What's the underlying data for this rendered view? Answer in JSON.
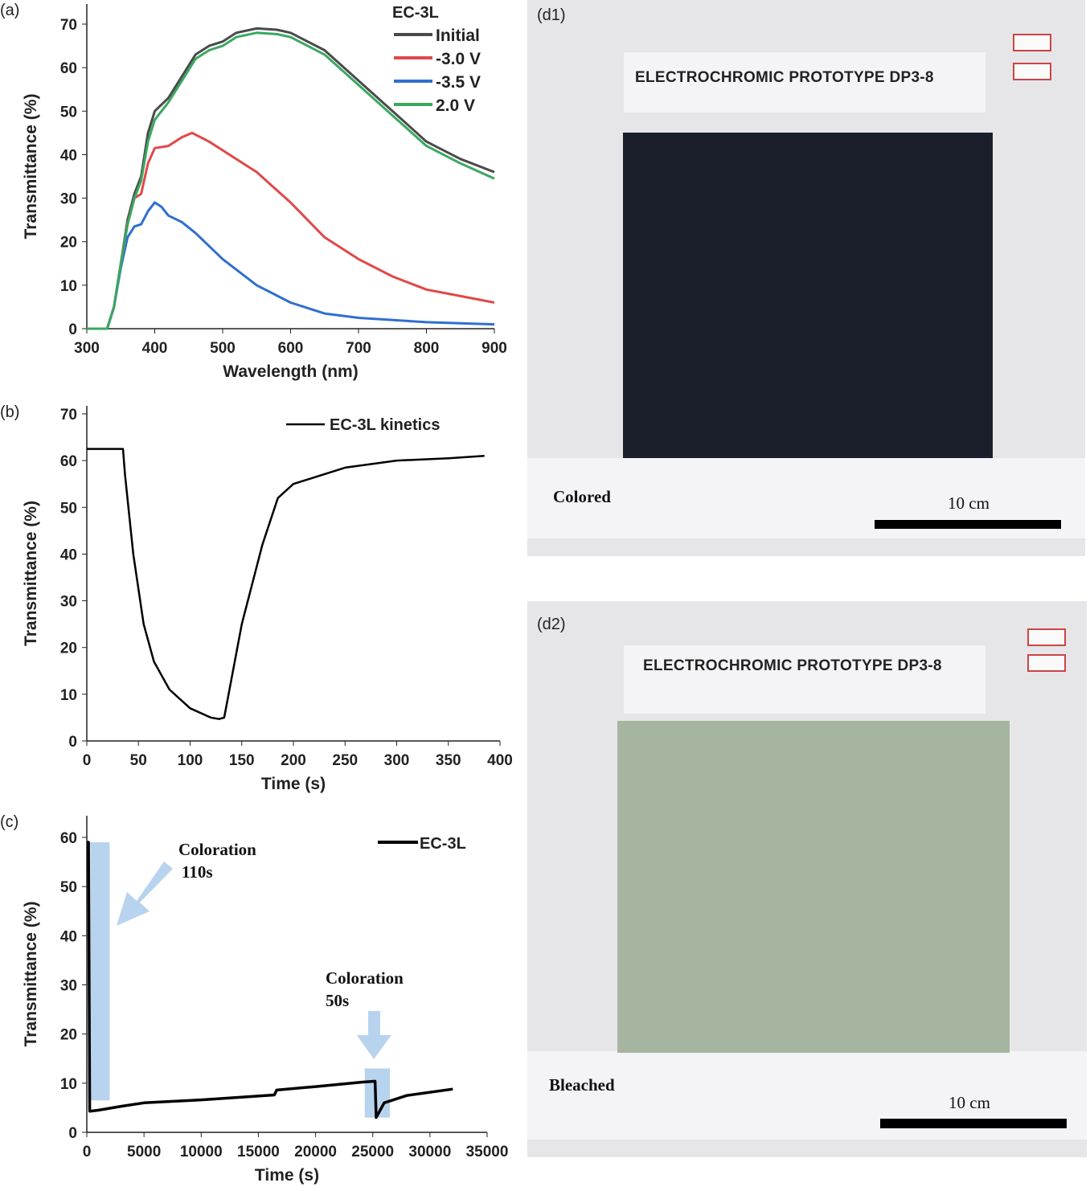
{
  "chart_data": [
    {
      "panel": "(a)",
      "type": "line",
      "xlabel": "Wavelength (nm)",
      "ylabel": "Transmittance (%)",
      "xlim": [
        300,
        900
      ],
      "ylim": [
        0,
        75
      ],
      "xticks": [
        300,
        400,
        500,
        600,
        700,
        800,
        900
      ],
      "yticks": [
        0,
        10,
        20,
        30,
        40,
        50,
        60,
        70
      ],
      "legend_title": "EC-3L",
      "legend_position": "top-right",
      "grid": false,
      "series": [
        {
          "name": "Initial",
          "color": "#4a4a4a",
          "x": [
            300,
            330,
            340,
            350,
            360,
            370,
            380,
            390,
            400,
            420,
            440,
            460,
            480,
            500,
            520,
            550,
            580,
            600,
            650,
            700,
            750,
            800,
            850,
            900
          ],
          "y": [
            0,
            0,
            5,
            15,
            25,
            31,
            35,
            45,
            50,
            53,
            58,
            63,
            65,
            66,
            68,
            69,
            68.7,
            68,
            64,
            57,
            50,
            43,
            39,
            36
          ]
        },
        {
          "name": "-3.0 V",
          "color": "#e04848",
          "x": [
            300,
            330,
            340,
            350,
            360,
            370,
            380,
            390,
            400,
            420,
            440,
            455,
            480,
            500,
            550,
            600,
            650,
            700,
            750,
            800,
            850,
            900
          ],
          "y": [
            0,
            0,
            5,
            15,
            24,
            30,
            31,
            38,
            41.5,
            42,
            44,
            45,
            43,
            41,
            36,
            29,
            21,
            16,
            12,
            9,
            7.5,
            6
          ]
        },
        {
          "name": "-3.5 V",
          "color": "#2f6fd0",
          "x": [
            300,
            330,
            340,
            350,
            360,
            370,
            380,
            390,
            400,
            410,
            420,
            440,
            460,
            500,
            550,
            600,
            650,
            700,
            800,
            900
          ],
          "y": [
            0,
            0,
            5,
            14,
            21,
            23.5,
            24,
            27,
            29,
            28,
            26,
            24.5,
            22,
            16,
            10,
            6,
            3.5,
            2.5,
            1.5,
            1
          ]
        },
        {
          "name": "2.0 V",
          "color": "#3aa860",
          "x": [
            300,
            330,
            340,
            350,
            360,
            370,
            380,
            390,
            400,
            420,
            440,
            460,
            480,
            500,
            520,
            550,
            580,
            600,
            650,
            700,
            750,
            800,
            850,
            900
          ],
          "y": [
            0,
            0,
            5,
            15,
            24,
            30,
            34,
            43,
            48,
            52,
            57,
            62,
            64,
            65,
            67,
            68,
            67.7,
            67,
            63,
            56,
            49,
            42,
            38,
            34.5
          ]
        }
      ]
    },
    {
      "panel": "(b)",
      "type": "line",
      "xlabel": "Time (s)",
      "ylabel": "Transmittance (%)",
      "xlim": [
        0,
        400
      ],
      "ylim": [
        0,
        70
      ],
      "xticks": [
        0,
        50,
        100,
        150,
        200,
        250,
        300,
        350,
        400
      ],
      "yticks": [
        0,
        10,
        20,
        30,
        40,
        50,
        60,
        70
      ],
      "legend_position": "top-right",
      "grid": false,
      "series": [
        {
          "name": "EC-3L kinetics",
          "color": "#000000",
          "x": [
            0,
            35,
            37,
            45,
            55,
            65,
            80,
            100,
            120,
            128,
            133,
            150,
            170,
            185,
            200,
            250,
            300,
            350,
            385
          ],
          "y": [
            62.5,
            62.5,
            57,
            40,
            25,
            17,
            11,
            7,
            5,
            4.7,
            5,
            25,
            42,
            52,
            55,
            58.5,
            60,
            60.5,
            61
          ]
        }
      ]
    },
    {
      "panel": "(c)",
      "type": "line",
      "xlabel": "Time (s)",
      "ylabel": "Transmittance (%)",
      "xlim": [
        0,
        35000
      ],
      "ylim": [
        0,
        65
      ],
      "xticks": [
        0,
        5000,
        10000,
        15000,
        20000,
        25000,
        30000,
        35000
      ],
      "yticks": [
        0,
        10,
        20,
        30,
        40,
        50,
        60
      ],
      "legend_position": "top-right",
      "grid": false,
      "series": [
        {
          "name": "EC-3L",
          "color": "#000000",
          "x": [
            0,
            150,
            250,
            1000,
            3000,
            5000,
            10000,
            16400,
            16600,
            20000,
            24000,
            25200,
            25300,
            26000,
            28000,
            32000
          ],
          "y": [
            59,
            59,
            4.3,
            4.5,
            5.3,
            6,
            6.6,
            7.6,
            8.6,
            9.3,
            10.2,
            10.4,
            3,
            6,
            7.5,
            8.8
          ]
        }
      ],
      "highlights": [
        {
          "x": [
            300,
            2000
          ],
          "y": [
            6.5,
            59
          ]
        },
        {
          "x": [
            24300,
            26500
          ],
          "y": [
            3,
            13
          ]
        }
      ],
      "annotations": [
        {
          "lines": [
            "Coloration",
            "110s"
          ]
        },
        {
          "lines": [
            "Coloration",
            "50s"
          ]
        }
      ],
      "highlight_color": "#b8d3ee"
    }
  ],
  "photos": [
    {
      "label": "(d1)",
      "title": "ELECTROCHROMIC PROTOTYPE DP3-8",
      "state": "Colored",
      "scale": "10 cm",
      "panel_color": "#1b1e2b"
    },
    {
      "label": "(d2)",
      "title": "ELECTROCHROMIC PROTOTYPE DP3-8",
      "state": "Bleached",
      "scale": "10 cm",
      "panel_color": "#a6b59f"
    }
  ]
}
